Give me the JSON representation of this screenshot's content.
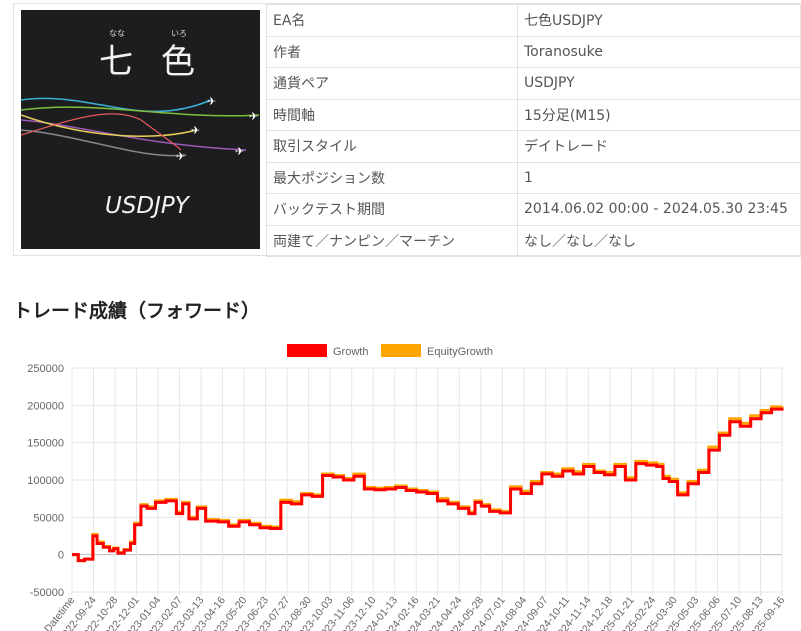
{
  "ea_card": {
    "ruby_nana": "なな",
    "ruby_iro": "いろ",
    "char_nana": "七",
    "char_iro": "色",
    "pair_label": "USDJPY"
  },
  "info_table": [
    {
      "key": "EA名",
      "value": "七色USDJPY"
    },
    {
      "key": "作者",
      "value": "Toranosuke"
    },
    {
      "key": "通貨ペア",
      "value": "USDJPY"
    },
    {
      "key": "時間軸",
      "value": "15分足(M15)"
    },
    {
      "key": "取引スタイル",
      "value": "デイトレード"
    },
    {
      "key": "最大ポジション数",
      "value": "1"
    },
    {
      "key": "バックテスト期間",
      "value": "2014.06.02 00:00 - 2024.05.30 23:45"
    },
    {
      "key": "両建て／ナンピン／マーチン",
      "value": "なし／なし／なし"
    }
  ],
  "section_title": "トレード成績（フォワード）",
  "colors": {
    "growth": "#ff0000",
    "equity": "#ffa500",
    "grid": "#e6e6e6"
  },
  "chart_data": {
    "type": "line",
    "title": "",
    "xlabel": "",
    "ylabel": "",
    "ylim": [
      -50000,
      250000
    ],
    "y_ticks": [
      250000,
      200000,
      150000,
      100000,
      50000,
      0,
      -50000
    ],
    "legend_position": "top-center",
    "grid": true,
    "x_tick_labels": [
      "Datetime",
      "2022-09-24",
      "2022-10-28",
      "2022-12-01",
      "2023-01-04",
      "2023-02-07",
      "2023-03-13",
      "2023-04-16",
      "2023-05-20",
      "2023-06-23",
      "2023-07-27",
      "2023-08-30",
      "2023-10-03",
      "2023-11-06",
      "2023-12-10",
      "2024-01-13",
      "2024-02-16",
      "2024-03-21",
      "2024-04-24",
      "2024-05-28",
      "2024-07-01",
      "2024-08-04",
      "2024-09-07",
      "2024-10-11",
      "2024-11-14",
      "2024-12-18",
      "2025-01-21",
      "2025-02-24",
      "2025-03-30",
      "2025-05-03",
      "2025-06-06",
      "2025-07-10",
      "2025-08-13",
      "2025-09-16"
    ],
    "x_index": [
      0,
      0.3,
      0.6,
      1,
      1.2,
      1.5,
      1.8,
      2,
      2.2,
      2.5,
      2.8,
      3,
      3.3,
      3.6,
      4,
      4.5,
      5,
      5.3,
      5.6,
      6,
      6.4,
      7,
      7.5,
      8,
      8.5,
      9,
      9.5,
      10,
      10.5,
      11,
      11.5,
      12,
      12.5,
      13,
      13.5,
      14,
      14.5,
      15,
      15.5,
      16,
      16.5,
      17,
      17.5,
      18,
      18.5,
      19,
      19.3,
      19.6,
      20,
      20.5,
      21,
      21.5,
      22,
      22.5,
      23,
      23.5,
      24,
      24.5,
      25,
      25.5,
      26,
      26.5,
      27,
      27.5,
      28,
      28.3,
      28.6,
      29,
      29.5,
      30,
      30.5,
      31,
      31.5,
      32,
      32.5,
      33,
      33.5,
      34
    ],
    "series": [
      {
        "name": "Growth",
        "values": [
          0,
          -8000,
          -6000,
          25000,
          15000,
          10000,
          5000,
          8000,
          2000,
          6000,
          15000,
          40000,
          65000,
          62000,
          70000,
          72000,
          55000,
          68000,
          48000,
          62000,
          45000,
          44000,
          38000,
          44000,
          40000,
          36000,
          35000,
          70000,
          68000,
          80000,
          78000,
          106000,
          104000,
          100000,
          105000,
          88000,
          87000,
          88000,
          90000,
          86000,
          84000,
          82000,
          72000,
          68000,
          62000,
          55000,
          70000,
          65000,
          58000,
          56000,
          88000,
          82000,
          95000,
          108000,
          105000,
          112000,
          108000,
          118000,
          110000,
          107000,
          118000,
          100000,
          122000,
          120000,
          118000,
          102000,
          98000,
          80000,
          95000,
          110000,
          140000,
          160000,
          178000,
          172000,
          182000,
          190000,
          195000,
          197000
        ]
      },
      {
        "name": "EquityGrowth",
        "values": [
          0,
          -8000,
          -6000,
          27000,
          17000,
          11000,
          6000,
          9000,
          3000,
          7000,
          17000,
          42000,
          67000,
          64000,
          72000,
          74000,
          57000,
          70000,
          50000,
          64000,
          47000,
          46000,
          40000,
          46000,
          42000,
          38000,
          37000,
          73000,
          71000,
          82000,
          80000,
          108000,
          106000,
          102000,
          108000,
          90000,
          89000,
          90000,
          92000,
          88000,
          86000,
          84000,
          75000,
          70000,
          64000,
          57000,
          72000,
          67000,
          60000,
          58000,
          91000,
          85000,
          98000,
          110000,
          108000,
          115000,
          111000,
          121000,
          112000,
          110000,
          121000,
          103000,
          125000,
          123000,
          121000,
          105000,
          101000,
          83000,
          98000,
          113000,
          144000,
          163000,
          182000,
          176000,
          186000,
          193000,
          198000,
          199000
        ]
      }
    ]
  }
}
